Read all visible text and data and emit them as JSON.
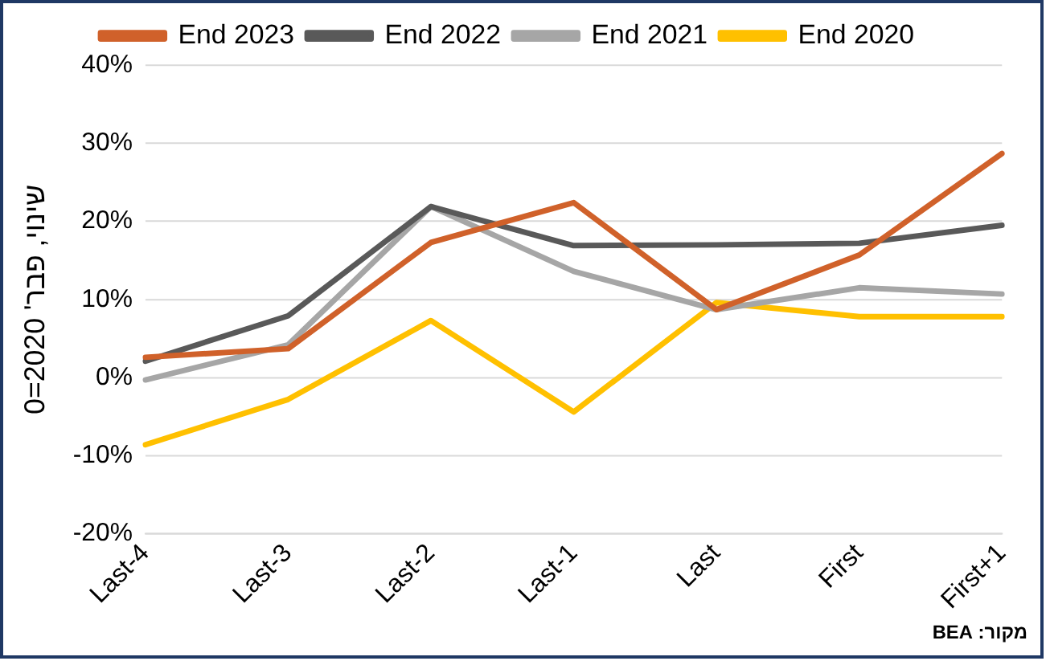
{
  "chart_data": {
    "type": "line",
    "ylabel": "שינוי, פבר' 2020=0",
    "categories": [
      "Last-4",
      "Last-3",
      "Last-2",
      "Last-1",
      "Last",
      "First",
      "First+1"
    ],
    "series": [
      {
        "name": "End 2023",
        "color": "#d0612a",
        "values": [
          2.6,
          3.7,
          17.3,
          22.4,
          8.7,
          15.7,
          28.7
        ]
      },
      {
        "name": "End 2022",
        "color": "#595959",
        "values": [
          2.1,
          7.9,
          21.9,
          16.9,
          17.0,
          17.2,
          19.5
        ]
      },
      {
        "name": "End 2021",
        "color": "#a6a6a6",
        "values": [
          -0.3,
          4.2,
          21.9,
          13.6,
          8.7,
          11.5,
          10.7
        ]
      },
      {
        "name": "End 2020",
        "color": "#ffc000",
        "values": [
          -8.6,
          -2.8,
          7.3,
          -4.4,
          9.6,
          7.8,
          7.8
        ]
      }
    ],
    "ylim": [
      -20,
      40
    ],
    "yticks": [
      {
        "value": -20,
        "label": "-20%"
      },
      {
        "value": -10,
        "label": "-10%"
      },
      {
        "value": 0,
        "label": "0%"
      },
      {
        "value": 10,
        "label": "10%"
      },
      {
        "value": 20,
        "label": "20%"
      },
      {
        "value": 30,
        "label": "30%"
      },
      {
        "value": 40,
        "label": "40%"
      }
    ],
    "grid": "y",
    "legend": "top",
    "marker": "none",
    "line_style": "solid",
    "annotations": [
      "מקור: BEA"
    ]
  }
}
